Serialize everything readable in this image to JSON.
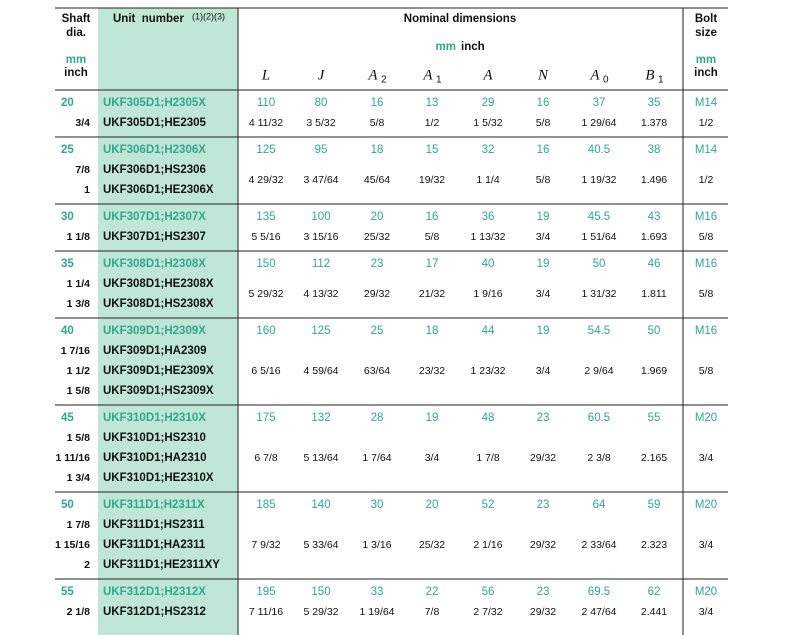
{
  "header": {
    "shaft_title": [
      "Shaft",
      "dia."
    ],
    "shaft_mm": "mm",
    "shaft_inch": "inch",
    "unit_title": "Unit  number",
    "unit_notes": "(1)(2)(3)",
    "nominal_title": "Nominal dimensions",
    "nominal_mm": "mm",
    "nominal_inch": "inch",
    "columns": [
      {
        "sym": "L",
        "sub": ""
      },
      {
        "sym": "J",
        "sub": ""
      },
      {
        "sym": "A",
        "sub": "2"
      },
      {
        "sym": "A",
        "sub": "1"
      },
      {
        "sym": "A",
        "sub": ""
      },
      {
        "sym": "N",
        "sub": ""
      },
      {
        "sym": "A",
        "sub": "0"
      },
      {
        "sym": "B",
        "sub": "1"
      }
    ],
    "bolt_title": [
      "Bolt",
      "size"
    ],
    "bolt_mm": "mm",
    "bolt_inch": "inch"
  },
  "groups": [
    {
      "shaft_mm": "20",
      "shaft_inch": [
        "3/4"
      ],
      "units": [
        "UKF305D1;H2305X",
        "UKF305D1;HE2305"
      ],
      "mm": [
        "110",
        "80",
        "16",
        "13",
        "29",
        "16",
        "37",
        "35"
      ],
      "inch": [
        "4 11/32",
        "3 5/32",
        "5/8",
        "1/2",
        "1 5/32",
        "5/8",
        "1 29/64",
        "1.378"
      ],
      "bolt_mm": "M14",
      "bolt_inch": "1/2"
    },
    {
      "shaft_mm": "25",
      "shaft_inch": [
        "7/8",
        "1"
      ],
      "units": [
        "UKF306D1;H2306X",
        "UKF306D1;HS2306",
        "UKF306D1;HE2306X"
      ],
      "mm": [
        "125",
        "95",
        "18",
        "15",
        "32",
        "16",
        "40.5",
        "38"
      ],
      "inch": [
        "4 29/32",
        "3 47/64",
        "45/64",
        "19/32",
        "1 1/4",
        "5/8",
        "1 19/32",
        "1.496"
      ],
      "bolt_mm": "M14",
      "bolt_inch": "1/2"
    },
    {
      "shaft_mm": "30",
      "shaft_inch": [
        "1 1/8"
      ],
      "units": [
        "UKF307D1;H2307X",
        "UKF307D1;HS2307"
      ],
      "mm": [
        "135",
        "100",
        "20",
        "16",
        "36",
        "19",
        "45.5",
        "43"
      ],
      "inch": [
        "5 5/16",
        "3 15/16",
        "25/32",
        "5/8",
        "1 13/32",
        "3/4",
        "1 51/64",
        "1.693"
      ],
      "bolt_mm": "M16",
      "bolt_inch": "5/8"
    },
    {
      "shaft_mm": "35",
      "shaft_inch": [
        "1 1/4",
        "1 3/8"
      ],
      "units": [
        "UKF308D1;H2308X",
        "UKF308D1;HE2308X",
        "UKF308D1;HS2308X"
      ],
      "mm": [
        "150",
        "112",
        "23",
        "17",
        "40",
        "19",
        "50",
        "46"
      ],
      "inch": [
        "5 29/32",
        "4 13/32",
        "29/32",
        "21/32",
        "1 9/16",
        "3/4",
        "1 31/32",
        "1.811"
      ],
      "bolt_mm": "M16",
      "bolt_inch": "5/8"
    },
    {
      "shaft_mm": "40",
      "shaft_inch": [
        "1 7/16",
        "1 1/2",
        "1 5/8"
      ],
      "units": [
        "UKF309D1;H2309X",
        "UKF309D1;HA2309",
        "UKF309D1;HE2309X",
        "UKF309D1;HS2309X"
      ],
      "mm": [
        "160",
        "125",
        "25",
        "18",
        "44",
        "19",
        "54.5",
        "50"
      ],
      "inch": [
        "6 5/16",
        "4 59/64",
        "63/64",
        "23/32",
        "1 23/32",
        "3/4",
        "2 9/64",
        "1.969"
      ],
      "bolt_mm": "M16",
      "bolt_inch": "5/8"
    },
    {
      "shaft_mm": "45",
      "shaft_inch": [
        "1 5/8",
        "1 11/16",
        "1 3/4"
      ],
      "units": [
        "UKF310D1;H2310X",
        "UKF310D1;HS2310",
        "UKF310D1;HA2310",
        "UKF310D1;HE2310X"
      ],
      "mm": [
        "175",
        "132",
        "28",
        "19",
        "48",
        "23",
        "60.5",
        "55"
      ],
      "inch": [
        "6 7/8",
        "5 13/64",
        "1 7/64",
        "3/4",
        "1 7/8",
        "29/32",
        "2 3/8",
        "2.165"
      ],
      "bolt_mm": "M20",
      "bolt_inch": "3/4"
    },
    {
      "shaft_mm": "50",
      "shaft_inch": [
        "1 7/8",
        "1 15/16",
        "2"
      ],
      "units": [
        "UKF311D1;H2311X",
        "UKF311D1;HS2311",
        "UKF311D1;HA2311",
        "UKF311D1;HE2311XY"
      ],
      "mm": [
        "185",
        "140",
        "30",
        "20",
        "52",
        "23",
        "64",
        "59"
      ],
      "inch": [
        "7 9/32",
        "5 33/64",
        "1 3/16",
        "25/32",
        "2 1/16",
        "29/32",
        "2 33/64",
        "2.323"
      ],
      "bolt_mm": "M20",
      "bolt_inch": "3/4"
    },
    {
      "shaft_mm": "55",
      "shaft_inch": [
        "2 1/8"
      ],
      "units": [
        "UKF312D1;H2312X",
        "UKF312D1;HS2312"
      ],
      "mm": [
        "195",
        "150",
        "33",
        "22",
        "56",
        "23",
        "69.5",
        "62"
      ],
      "inch": [
        "7 11/16",
        "5 29/32",
        "1 19/64",
        "7/8",
        "2 7/32",
        "29/32",
        "2 47/64",
        "2.441"
      ],
      "bolt_mm": "M20",
      "bolt_inch": "3/4"
    }
  ]
}
